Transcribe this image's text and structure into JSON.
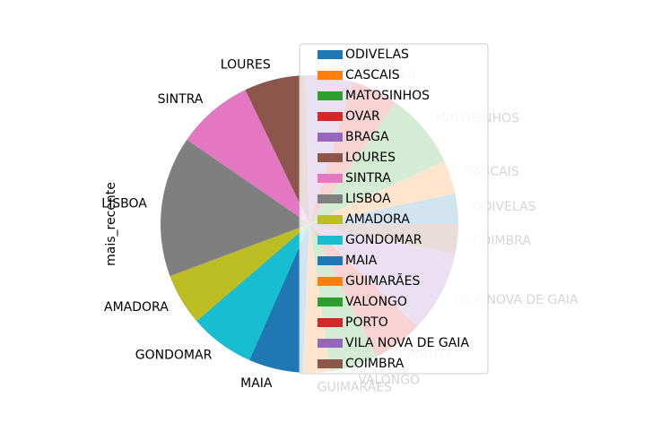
{
  "chart_data": {
    "type": "pie",
    "ylabel": "mais_recente",
    "legend_position": "upper-right",
    "start_angle_deg": 0,
    "direction": "counterclockwise",
    "legend_overlaps_right_half": true,
    "slices": [
      {
        "label": "ODIVELAS",
        "value": 3.3,
        "color": "#1f77b4"
      },
      {
        "label": "CASCAIS",
        "value": 3.7,
        "color": "#ff7f0e"
      },
      {
        "label": "MATOSINHOS",
        "value": 8.2,
        "color": "#2ca02c"
      },
      {
        "label": "OVAR",
        "value": 5.1,
        "color": "#d62728"
      },
      {
        "label": "BRAGA",
        "value": 5.2,
        "color": "#9467bd"
      },
      {
        "label": "LOURES",
        "value": 6.6,
        "color": "#8c564b"
      },
      {
        "label": "SINTRA",
        "value": 8.3,
        "color": "#e377c2"
      },
      {
        "label": "LISBOA",
        "value": 15.3,
        "color": "#7f7f7f"
      },
      {
        "label": "AMADORA",
        "value": 5.6,
        "color": "#bcbd22"
      },
      {
        "label": "GONDOMAR",
        "value": 7.1,
        "color": "#17becf"
      },
      {
        "label": "MAIA",
        "value": 5.9,
        "color": "#1f77b4"
      },
      {
        "label": "GUIMARÃES",
        "value": 2.9,
        "color": "#ff7f0e"
      },
      {
        "label": "VALONGO",
        "value": 5.2,
        "color": "#2ca02c"
      },
      {
        "label": "PORTO",
        "value": 5.5,
        "color": "#d62728"
      },
      {
        "label": "VILA NOVA DE GAIA",
        "value": 8.8,
        "color": "#9467bd"
      },
      {
        "label": "COIMBRA",
        "value": 3.3,
        "color": "#8c564b"
      }
    ]
  }
}
